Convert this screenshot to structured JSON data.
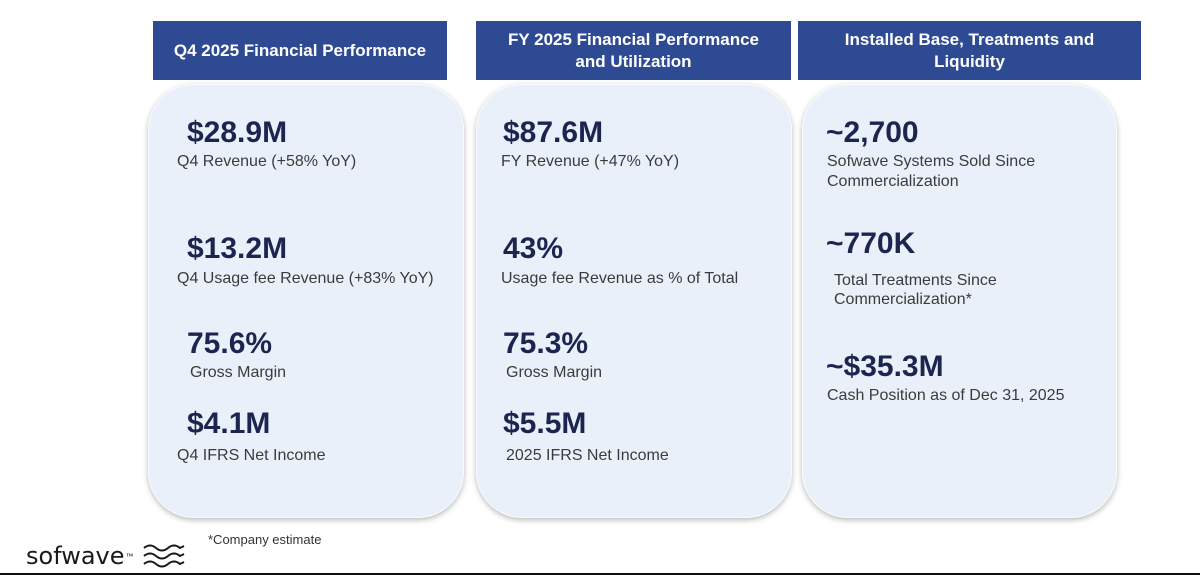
{
  "headers": [
    "Q4 2025 Financial Performance",
    "FY 2025 Financial Performance and Utilization",
    "Installed Base, Treatments and Liquidity"
  ],
  "panel1": [
    {
      "value": "$28.9M",
      "label": "Q4 Revenue (+58% YoY)"
    },
    {
      "value": "$13.2M",
      "label": "Q4 Usage fee Revenue (+83% YoY)"
    },
    {
      "value": "75.6%",
      "label": "Gross Margin"
    },
    {
      "value": "$4.1M",
      "label": "Q4 IFRS Net Income"
    }
  ],
  "panel2": [
    {
      "value": "$87.6M",
      "label": "FY Revenue (+47% YoY)"
    },
    {
      "value": "43%",
      "label": "Usage fee Revenue as % of Total"
    },
    {
      "value": "75.3%",
      "label": "Gross Margin"
    },
    {
      "value": "$5.5M",
      "label": "2025 IFRS Net Income"
    }
  ],
  "panel3": [
    {
      "value": "~2,700",
      "label_line1": "Sofwave Systems Sold Since",
      "label_line2": "Commercialization"
    },
    {
      "value": "~770K",
      "label_line1": "Total Treatments Since",
      "label_line2": "Commercialization*"
    },
    {
      "value": "~$35.3M",
      "label_line1": "Cash Position as of Dec 31, 2025"
    }
  ],
  "footnote": "*Company estimate",
  "logo": {
    "text": "sofwave",
    "tm": "™",
    "icon": "wave-lines-icon"
  },
  "colors": {
    "header": "#2e4a93",
    "panel": "#eaf0fa",
    "value_text": "#1c2550"
  }
}
